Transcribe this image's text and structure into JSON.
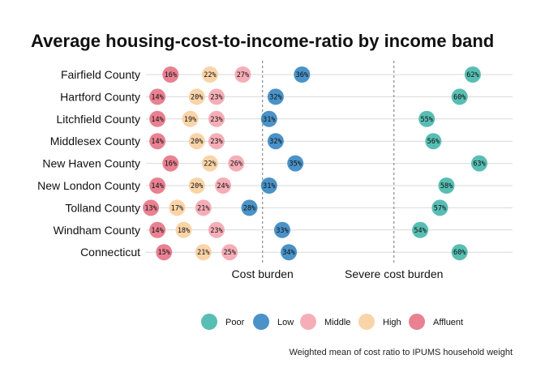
{
  "chart_data": {
    "type": "scatter",
    "title": "Average housing-cost-to-income-ratio by income band",
    "caption": "Weighted mean of cost ratio to IPUMS household weight",
    "categories": [
      "Fairfield County",
      "Hartford County",
      "Litchfield County",
      "Middlesex County",
      "New Haven County",
      "New London County",
      "Tolland County",
      "Windham County",
      "Connecticut"
    ],
    "series": [
      {
        "name": "Poor",
        "color": "#3bb3a6",
        "values": [
          62,
          60,
          55,
          56,
          63,
          58,
          57,
          54,
          60
        ]
      },
      {
        "name": "Low",
        "color": "#2a7fbd",
        "values": [
          36,
          32,
          31,
          32,
          35,
          31,
          28,
          33,
          34
        ]
      },
      {
        "name": "Middle",
        "color": "#f3a0aa",
        "values": [
          27,
          23,
          23,
          23,
          26,
          24,
          21,
          23,
          25
        ]
      },
      {
        "name": "High",
        "color": "#f8cc99",
        "values": [
          22,
          20,
          19,
          20,
          22,
          20,
          17,
          18,
          21
        ]
      },
      {
        "name": "Affluent",
        "color": "#e46b7e",
        "values": [
          16,
          14,
          14,
          14,
          16,
          14,
          13,
          14,
          15
        ]
      }
    ],
    "labels": [
      [
        "62%",
        "36%",
        "27%",
        "22%",
        "16%"
      ],
      [
        "60%",
        "32%",
        "23%",
        "20%",
        "14%"
      ],
      [
        "55%",
        "31%",
        "23%",
        "19%",
        "14%"
      ],
      [
        "56%",
        "32%",
        "23%",
        "20%",
        "14%"
      ],
      [
        "63%",
        "35%",
        "26%",
        "22%",
        "16%"
      ],
      [
        "58%",
        "31%",
        "24%",
        "20%",
        "14%"
      ],
      [
        "57%",
        "28%",
        "21%",
        "17%",
        "13%"
      ],
      [
        "54%",
        "33%",
        "23%",
        "18%",
        "14%"
      ],
      [
        "60%",
        "34%",
        "25%",
        "21%",
        "15%"
      ]
    ],
    "reference_lines": [
      {
        "label": "Cost burden",
        "value": 30
      },
      {
        "label": "Severe cost burden",
        "value": 50
      }
    ],
    "xlim": [
      13,
      63
    ],
    "grid": "horizontal",
    "legend": "bottom-right",
    "legend_entries": [
      "Poor",
      "Low",
      "Middle",
      "High",
      "Affluent"
    ]
  }
}
